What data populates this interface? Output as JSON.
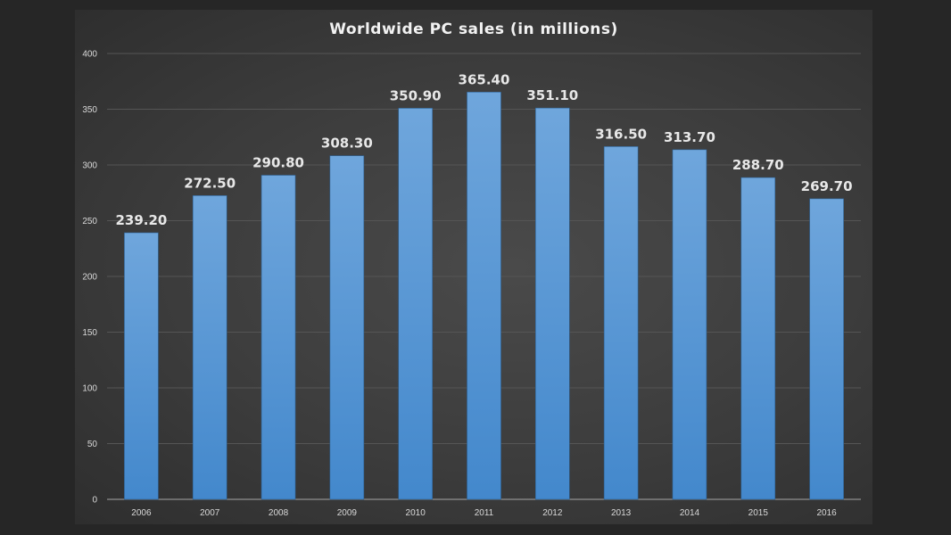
{
  "chart_data": {
    "type": "bar",
    "title": "Worldwide PC sales (in millions)",
    "categories": [
      "2006",
      "2007",
      "2008",
      "2009",
      "2010",
      "2011",
      "2012",
      "2013",
      "2014",
      "2015",
      "2016"
    ],
    "values": [
      239.2,
      272.5,
      290.8,
      308.3,
      350.9,
      365.4,
      351.1,
      316.5,
      313.7,
      288.7,
      269.7
    ],
    "data_labels": [
      "239.20",
      "272.50",
      "290.80",
      "308.30",
      "350.90",
      "365.40",
      "351.10",
      "316.50",
      "313.70",
      "288.70",
      "269.70"
    ],
    "xlabel": "",
    "ylabel": "",
    "ylim": [
      0,
      400
    ],
    "yticks": [
      0,
      50,
      100,
      150,
      200,
      250,
      300,
      350,
      400
    ],
    "grid": true,
    "legend": "none",
    "colors": {
      "bar_top": "#6fa6dc",
      "bar_bottom": "#4388cc",
      "background": "#3c3c3c",
      "gridline": "#555555",
      "text": "#d9d9d9"
    }
  }
}
